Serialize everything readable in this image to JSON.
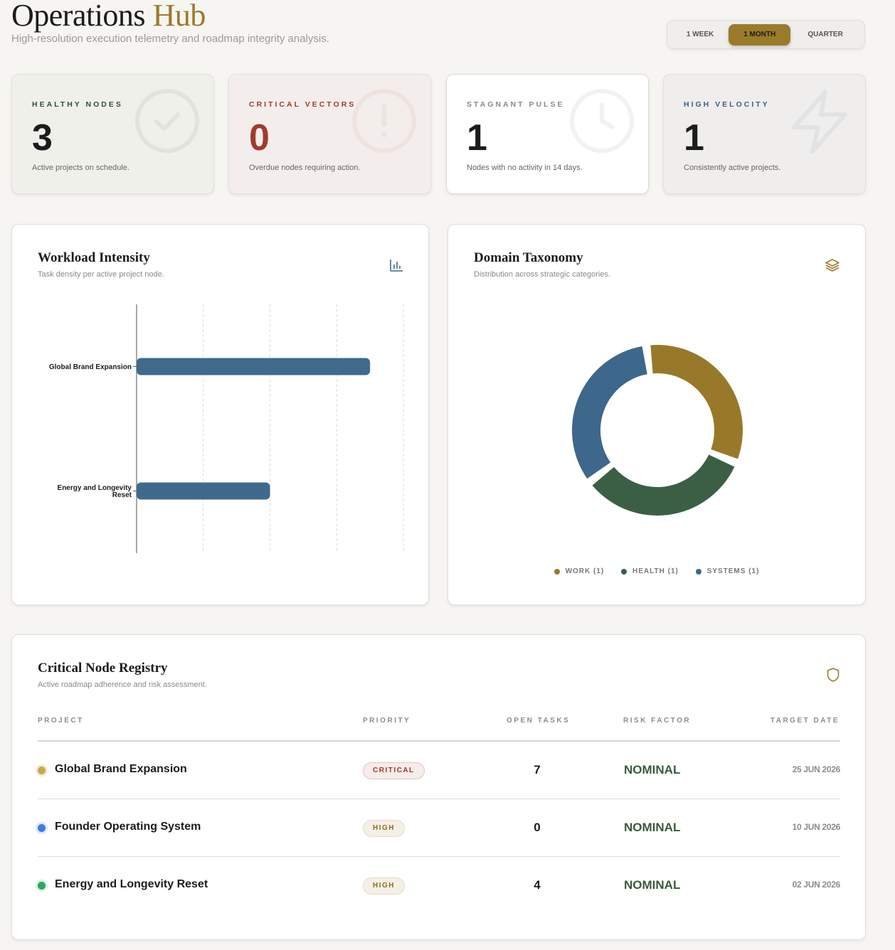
{
  "header": {
    "title_main": "Operations",
    "title_accent": "Hub",
    "subtitle": "High-resolution execution telemetry and roadmap integrity analysis.",
    "ranges": [
      "1 WEEK",
      "1 MONTH",
      "QUARTER"
    ],
    "selected_range": "1 MONTH"
  },
  "kpis": [
    {
      "label": "HEALTHY NODES",
      "value": "3",
      "desc": "Active projects on schedule.",
      "color": "#2f4f3a",
      "icon": "check-circle-icon"
    },
    {
      "label": "CRITICAL VECTORS",
      "value": "0",
      "desc": "Overdue nodes requiring action.",
      "color": "#a23a2e",
      "icon": "alert-circle-icon"
    },
    {
      "label": "STAGNANT PULSE",
      "value": "1",
      "desc": "Nodes with no activity in 14 days.",
      "color": "#8a8a8a",
      "icon": "clock-icon"
    },
    {
      "label": "HIGH VELOCITY",
      "value": "1",
      "desc": "Consistently active projects.",
      "color": "#3d5f82",
      "icon": "lightning-icon"
    }
  ],
  "workload": {
    "title": "Workload Intensity",
    "subtitle": "Task density per active project node.",
    "icon": "bar-chart-icon"
  },
  "taxonomy": {
    "title": "Domain Taxonomy",
    "subtitle": "Distribution across strategic categories.",
    "icon": "layers-icon"
  },
  "chart_data": [
    {
      "type": "bar",
      "orientation": "horizontal",
      "categories": [
        "Global Brand Expansion",
        "Energy and Longevity Reset"
      ],
      "values": [
        7,
        4
      ],
      "xlim": [
        0,
        8
      ],
      "grid": true,
      "title": "Workload Intensity",
      "color": "#3f6a8c"
    },
    {
      "type": "pie",
      "donut": true,
      "labels": [
        "WORK (1)",
        "HEALTH (1)",
        "SYSTEMS (1)"
      ],
      "values": [
        1,
        1,
        1
      ],
      "colors": [
        "#98792a",
        "#3b5f45",
        "#3d678b"
      ],
      "title": "Domain Taxonomy",
      "legend": "bottom"
    }
  ],
  "registry": {
    "title": "Critical Node Registry",
    "subtitle": "Active roadmap adherence and risk assessment.",
    "icon": "shield-icon",
    "columns": [
      "PROJECT",
      "PRIORITY",
      "OPEN TASKS",
      "RISK FACTOR",
      "TARGET DATE"
    ],
    "rows": [
      {
        "project": "Global Brand Expansion",
        "dot": "#c9a94c",
        "priority": "CRITICAL",
        "priority_kind": "critical",
        "tasks": "7",
        "risk": "NOMINAL",
        "date": "25 JUN 2026"
      },
      {
        "project": "Founder Operating System",
        "dot": "#3f7be0",
        "priority": "HIGH",
        "priority_kind": "high",
        "tasks": "0",
        "risk": "NOMINAL",
        "date": "10 JUN 2026"
      },
      {
        "project": "Energy and Longevity Reset",
        "dot": "#2aa860",
        "priority": "HIGH",
        "priority_kind": "high",
        "tasks": "4",
        "risk": "NOMINAL",
        "date": "02 JUN 2026"
      }
    ]
  }
}
